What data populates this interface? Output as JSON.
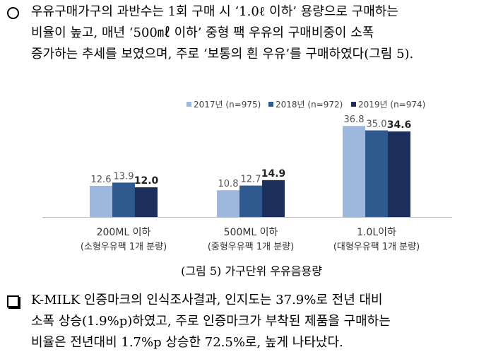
{
  "para1": {
    "lines": [
      "우유구매가구의 과반수는 1회 구매 시 ‘1.0ℓ 이하’ 용량으로 구매하는",
      "비율이 높고, 매년 ‘500㎖ 이하’ 중형 팩 우유의 구매비중이 소폭",
      "증가하는 추세를 보였으며, 주로 ‘보통의 흰 우유’를 구매하였다(그림 5)."
    ]
  },
  "caption": "(그림 5) 가구단위 우유음용량",
  "para2": {
    "lines": [
      "K-MILK 인증마크의 인식조사결과, 인지도는 37.9%로 전년 대비",
      "소폭 상승(1.9%p)하였고, 주로 인증마크가 부착된 제품을 구매하는",
      "비율은 전년대비 1.7%p 상승한 72.5%로, 높게 나타났다."
    ]
  },
  "chart_data": {
    "type": "bar",
    "categories": [
      "200ML 이하",
      "500ML 이하",
      "1.0L이하"
    ],
    "category_sublabels": [
      "(소형우유팩 1개 분량)",
      "(중형우유팩 1개 분량)",
      "(대형우유팩 1개 분량)"
    ],
    "series": [
      {
        "name": "2017년 (n=975)",
        "values": [
          12.6,
          10.8,
          36.8
        ],
        "color": "#9db8dc"
      },
      {
        "name": "2018년 (n=972)",
        "values": [
          13.9,
          12.7,
          35.0
        ],
        "color": "#2f5a8f"
      },
      {
        "name": "2019년 (n=974)",
        "values": [
          12.0,
          14.9,
          34.6
        ],
        "color": "#1c2f5a"
      }
    ],
    "legend_position": "top",
    "bold_series_index": 2,
    "ylim": [
      0,
      40
    ],
    "grid": false
  }
}
